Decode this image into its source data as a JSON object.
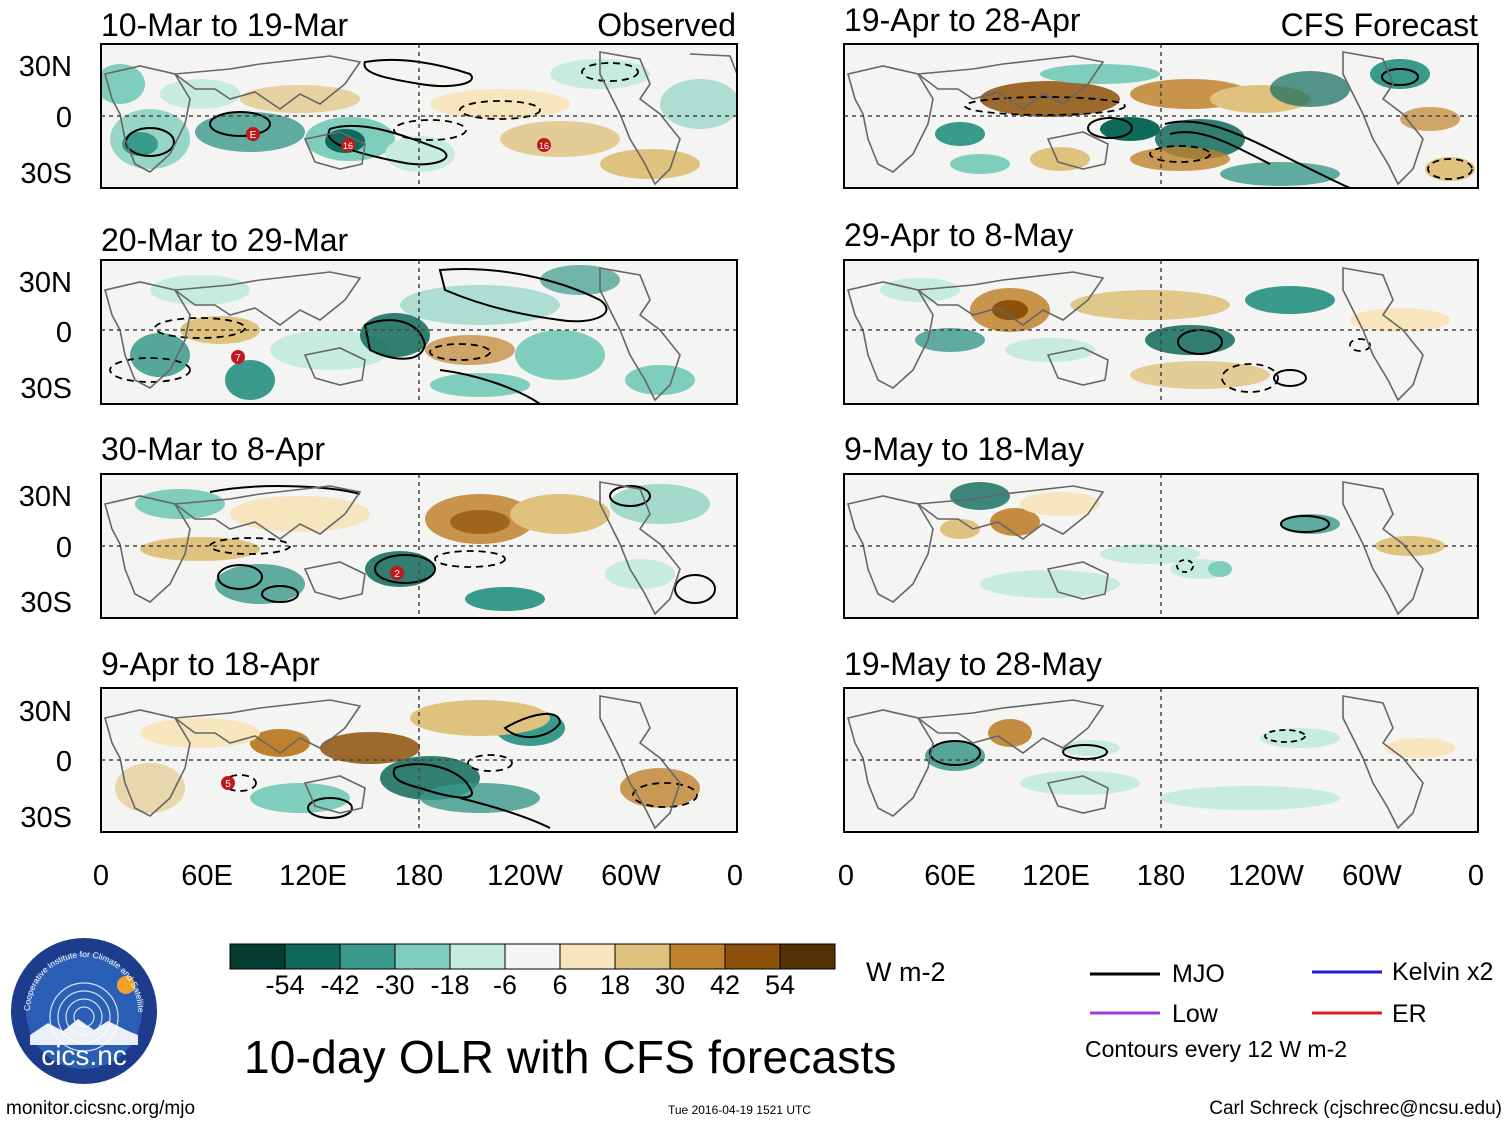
{
  "title": "10-day OLR with CFS forecasts",
  "footer": {
    "url": "monitor.cicsnc.org/mjo",
    "timestamp": "Tue 2016-04-19 1521 UTC",
    "author": "Carl Schreck (cjschrec@ncsu.edu)"
  },
  "logo": {
    "text": "cics.nc",
    "ring_text": "Cooperative Institute for Climate and Satellites",
    "colors": {
      "outer": "#1e3c8c",
      "inner": "#2a5fb5",
      "sun": "#f2a12b"
    }
  },
  "columns": [
    {
      "label": "Observed"
    },
    {
      "label": "CFS Forecast"
    }
  ],
  "panels": {
    "observed": [
      {
        "period": "10-Mar to 19-Mar",
        "storms": [
          "E",
          "16",
          "16"
        ]
      },
      {
        "period": "20-Mar to 29-Mar",
        "storms": [
          "7"
        ]
      },
      {
        "period": "30-Mar to 8-Apr",
        "storms": [
          "2"
        ]
      },
      {
        "period": "9-Apr to 18-Apr",
        "storms": [
          "5"
        ]
      }
    ],
    "forecast": [
      {
        "period": "19-Apr to 28-Apr"
      },
      {
        "period": "29-Apr to 8-May"
      },
      {
        "period": "9-May to 18-May"
      },
      {
        "period": "19-May to 28-May"
      }
    ]
  },
  "axes": {
    "lat_ticks": [
      "30N",
      "0",
      "30S"
    ],
    "lon_ticks": [
      "0",
      "60E",
      "120E",
      "180",
      "120W",
      "60W",
      "0"
    ]
  },
  "colorbar": {
    "units": "W m-2",
    "labels": [
      "-54",
      "-42",
      "-30",
      "-18",
      "-6",
      "6",
      "18",
      "30",
      "42",
      "54"
    ],
    "colors": [
      "#053c30",
      "#0f6a5b",
      "#39998a",
      "#7fcdbb",
      "#c7ebe0",
      "#f5f5f5",
      "#f6e5bd",
      "#dfc27d",
      "#bf812d",
      "#8c510a",
      "#543005"
    ]
  },
  "legend": {
    "items": [
      {
        "label": "MJO",
        "color": "#000000"
      },
      {
        "label": "Kelvin x2",
        "color": "#1f1fd0"
      },
      {
        "label": "Low",
        "color": "#9b3fd6"
      },
      {
        "label": "ER",
        "color": "#d01f1f"
      }
    ],
    "note": "Contours every 12 W m-2"
  }
}
